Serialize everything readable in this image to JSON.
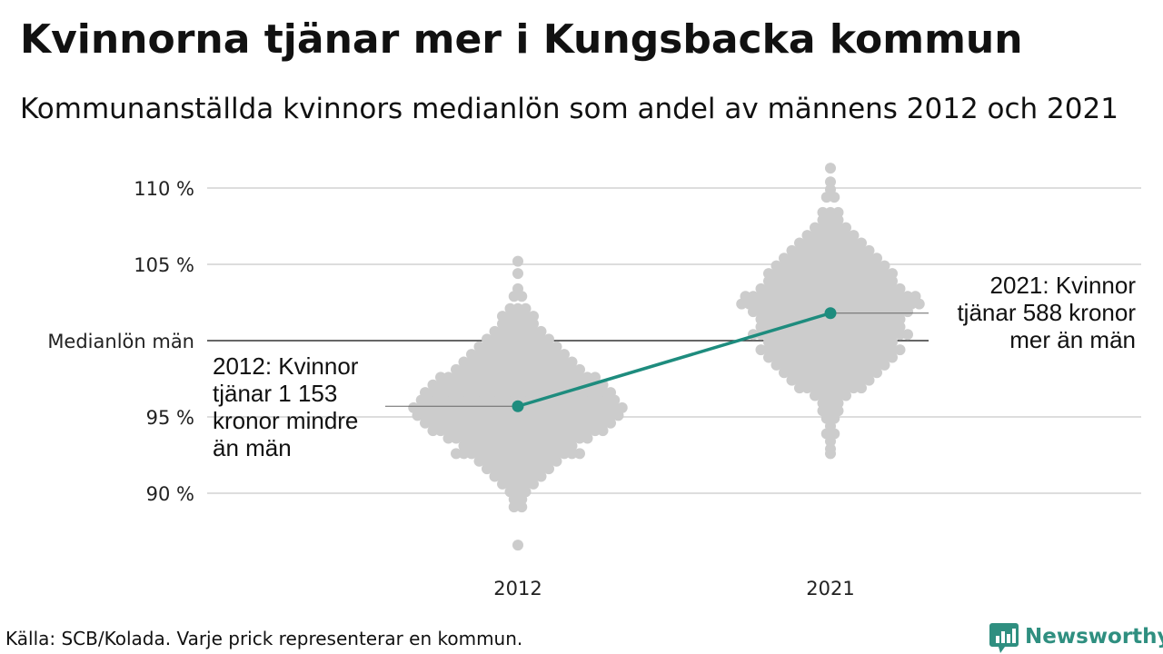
{
  "title": "Kvinnorna tjänar mer i Kungsbacka kommun",
  "subtitle": "Kommunanställda kvinnors medianlön som andel av männens 2012 och 2021",
  "source": "Källa: SCB/Kolada. Varje prick representerar en kommun.",
  "logo": {
    "text": "Newsworthy",
    "icon": "bar-chart-speech-bubble-icon",
    "color": "#2f8f80"
  },
  "colors": {
    "dots": "#cccccc",
    "highlight": "#1e8c7e",
    "reference": "#333333",
    "grid": "#dddddd"
  },
  "chart_data": {
    "type": "scatter",
    "x_categories": [
      "2012",
      "2021"
    ],
    "ylim": [
      86,
      111
    ],
    "y_ticks": [
      {
        "value": 90,
        "label": "90 %"
      },
      {
        "value": 95,
        "label": "95 %"
      },
      {
        "value": 105,
        "label": "105 %"
      },
      {
        "value": 110,
        "label": "110 %"
      }
    ],
    "reference_line": {
      "value": 100,
      "label": "Medianlön män"
    },
    "beeswarm": [
      {
        "category": "2012",
        "bins": [
          [
            105.2,
            1
          ],
          [
            104.4,
            1
          ],
          [
            103.4,
            1
          ],
          [
            102.9,
            2
          ],
          [
            102.1,
            3
          ],
          [
            101.6,
            5
          ],
          [
            101.1,
            5
          ],
          [
            100.6,
            7
          ],
          [
            100.1,
            9
          ],
          [
            99.6,
            11
          ],
          [
            99.1,
            13
          ],
          [
            98.6,
            15
          ],
          [
            98.1,
            17
          ],
          [
            97.6,
            21
          ],
          [
            97.1,
            23
          ],
          [
            96.6,
            25
          ],
          [
            96.1,
            26
          ],
          [
            95.6,
            28
          ],
          [
            95.1,
            27
          ],
          [
            94.6,
            25
          ],
          [
            94.1,
            23
          ],
          [
            93.6,
            19
          ],
          [
            93.1,
            15
          ],
          [
            92.6,
            17
          ],
          [
            92.1,
            11
          ],
          [
            91.6,
            9
          ],
          [
            91.1,
            7
          ],
          [
            90.6,
            5
          ],
          [
            90.1,
            3
          ],
          [
            89.6,
            2
          ],
          [
            89.1,
            2
          ],
          [
            86.6,
            1
          ]
        ]
      },
      {
        "category": "2021",
        "bins": [
          [
            111.3,
            1
          ],
          [
            110.4,
            1
          ],
          [
            109.9,
            1
          ],
          [
            109.4,
            2
          ],
          [
            108.4,
            3
          ],
          [
            107.9,
            3
          ],
          [
            107.4,
            5
          ],
          [
            106.9,
            7
          ],
          [
            106.4,
            9
          ],
          [
            105.9,
            11
          ],
          [
            105.4,
            13
          ],
          [
            104.9,
            15
          ],
          [
            104.4,
            17
          ],
          [
            103.9,
            17
          ],
          [
            103.4,
            19
          ],
          [
            102.9,
            23
          ],
          [
            102.4,
            24
          ],
          [
            101.9,
            21
          ],
          [
            101.4,
            19
          ],
          [
            100.9,
            19
          ],
          [
            100.4,
            21
          ],
          [
            99.9,
            17
          ],
          [
            99.4,
            19
          ],
          [
            98.9,
            17
          ],
          [
            98.4,
            15
          ],
          [
            97.9,
            13
          ],
          [
            97.4,
            11
          ],
          [
            96.9,
            9
          ],
          [
            96.4,
            5
          ],
          [
            95.9,
            3
          ],
          [
            95.4,
            3
          ],
          [
            94.9,
            2
          ],
          [
            94.4,
            1
          ],
          [
            93.9,
            2
          ],
          [
            93.4,
            1
          ],
          [
            92.9,
            1
          ],
          [
            92.6,
            1
          ]
        ]
      }
    ],
    "highlight": {
      "name": "Kungsbacka",
      "points": [
        {
          "x": "2012",
          "y": 95.7
        },
        {
          "x": "2021",
          "y": 101.8
        }
      ]
    },
    "annotations": [
      {
        "x": "2012",
        "lines": [
          "2012: Kvinnor",
          "tjänar 1 153",
          "kronor mindre",
          "än män"
        ]
      },
      {
        "x": "2021",
        "lines": [
          "2021: Kvinnor",
          "tjänar 588 kronor",
          "mer än män"
        ]
      }
    ]
  }
}
